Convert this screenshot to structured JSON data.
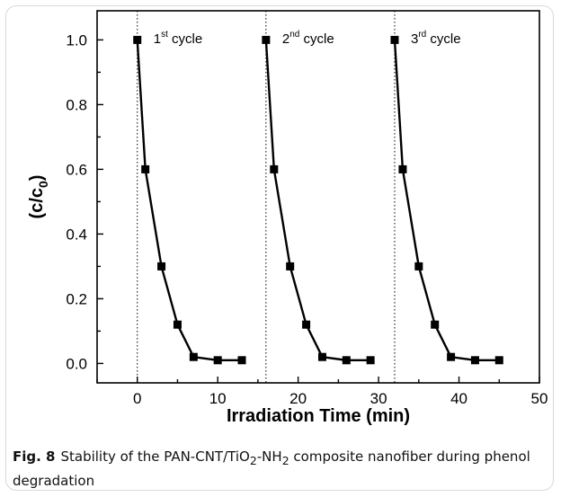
{
  "chart_data": {
    "type": "line",
    "xlabel": "Irradiation Time (min)",
    "ylabel": {
      "base": "(c/c",
      "sub": "0",
      "close": ")"
    },
    "xlim": [
      -5,
      50
    ],
    "ylim": [
      -0.06,
      1.09
    ],
    "x_ticks": [
      0,
      10,
      20,
      30,
      40,
      50
    ],
    "y_ticks": [
      0.0,
      0.2,
      0.4,
      0.6,
      0.8,
      1.0
    ],
    "y_tick_labels": [
      "0.0",
      "0.2",
      "0.4",
      "0.6",
      "0.8",
      "1.0"
    ],
    "grid": false,
    "marker": "square",
    "series_color": "#000000",
    "cycle_boundaries": [
      0,
      16,
      32
    ],
    "cycles": [
      {
        "num": "1",
        "sup": "st",
        "text": " cycle",
        "x": [
          0,
          1,
          3,
          5,
          7,
          10,
          13
        ],
        "y": [
          1.0,
          0.6,
          0.3,
          0.12,
          0.02,
          0.01,
          0.01
        ]
      },
      {
        "num": "2",
        "sup": "nd",
        "text": " cycle",
        "x": [
          16,
          17,
          19,
          21,
          23,
          26,
          29
        ],
        "y": [
          1.0,
          0.6,
          0.3,
          0.12,
          0.02,
          0.01,
          0.01
        ]
      },
      {
        "num": "3",
        "sup": "rd",
        "text": " cycle",
        "x": [
          32,
          33,
          35,
          37,
          39,
          42,
          45
        ],
        "y": [
          1.0,
          0.6,
          0.3,
          0.12,
          0.02,
          0.01,
          0.01
        ]
      }
    ]
  },
  "caption": {
    "label": "Fig. 8",
    "parts": [
      "Stability of the PAN-CNT/TiO",
      "2",
      "-NH",
      "2",
      " composite nanofiber during phenol degradation"
    ]
  }
}
